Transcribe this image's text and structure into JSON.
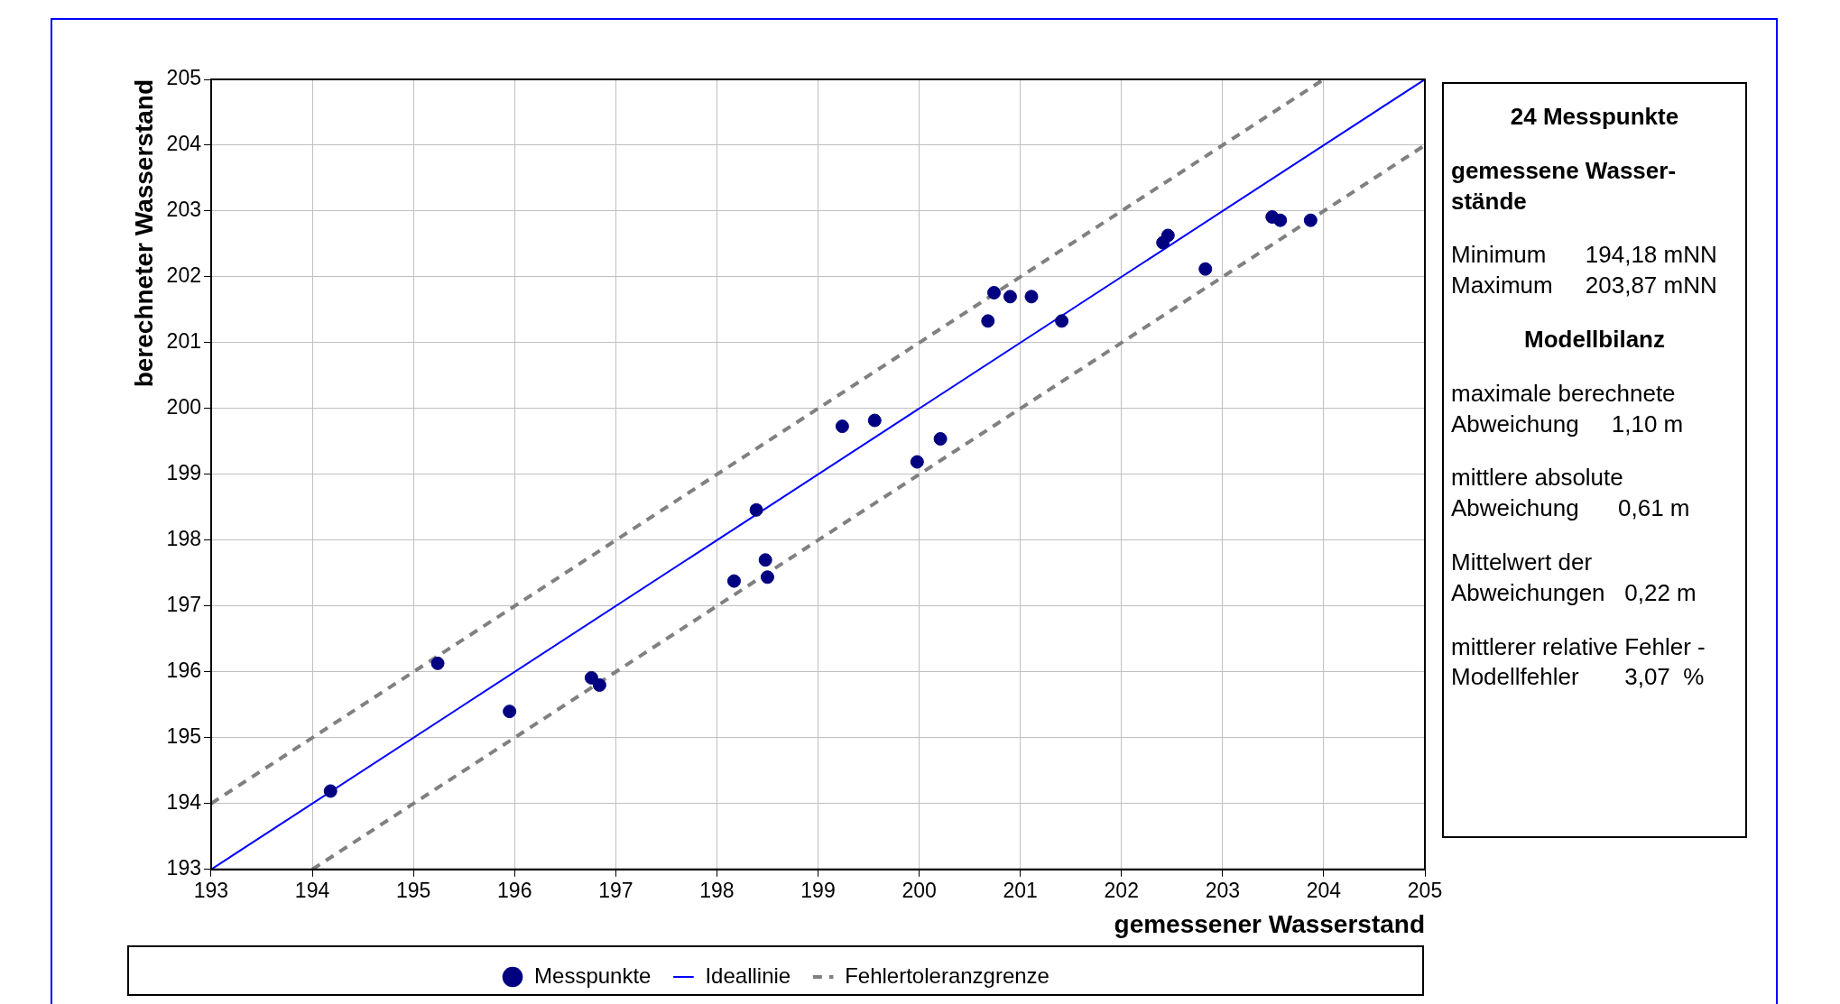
{
  "chart_data": {
    "type": "scatter",
    "xlabel": "gemessener Wasserstand",
    "ylabel": "berechneter Wasserstand",
    "xlim": [
      193,
      205
    ],
    "ylim": [
      193,
      205
    ],
    "xticks": [
      193,
      194,
      195,
      196,
      197,
      198,
      199,
      200,
      201,
      202,
      203,
      204,
      205
    ],
    "yticks": [
      193,
      194,
      195,
      196,
      197,
      198,
      199,
      200,
      201,
      202,
      203,
      204,
      205
    ],
    "grid": true,
    "legend": "bottom",
    "series": [
      {
        "name": "Messpunkte",
        "color": "#000080",
        "marker": "circle",
        "x": [
          194.18,
          195.24,
          195.95,
          196.76,
          196.84,
          198.17,
          198.39,
          198.48,
          198.5,
          199.24,
          199.56,
          199.98,
          200.21,
          200.68,
          200.74,
          200.9,
          201.11,
          201.41,
          202.41,
          202.46,
          202.83,
          203.49,
          203.57,
          203.87
        ],
        "values": [
          194.19,
          196.13,
          195.4,
          195.91,
          195.8,
          197.38,
          198.46,
          197.7,
          197.44,
          199.73,
          199.82,
          199.19,
          199.54,
          201.33,
          201.76,
          201.7,
          201.7,
          201.33,
          202.52,
          202.63,
          202.12,
          202.91,
          202.86,
          202.86
        ]
      },
      {
        "name": "Ideallinie",
        "type": "line",
        "color": "#0000ff",
        "marker": "none",
        "line_style": "solid",
        "x": [
          193,
          205
        ],
        "values": [
          193,
          205
        ]
      },
      {
        "name": "Fehlertoleranzgrenze",
        "type": "line",
        "color": "#808080",
        "marker": "none",
        "line_style": "dashed",
        "x": [
          193,
          204
        ],
        "values": [
          194,
          205
        ]
      },
      {
        "type": "line",
        "color": "#808080",
        "marker": "none",
        "line_style": "dashed",
        "x": [
          194,
          205
        ],
        "values": [
          193,
          204
        ]
      }
    ],
    "annotations": [
      "24 Messpunkte",
      "gemessene Wasser-\nstände",
      "Minimum      194,18 mNN\nMaximum     203,87 mNN",
      "Modellbilanz",
      "maximale berechnete\nAbweichung     1,10 m",
      "mittlere absolute\nAbweichung      0,61 m",
      "Mittelwert der\nAbweichungen   0,22 m",
      "mittlerer relative Fehler -\nModellfehler       3,07  %"
    ]
  }
}
